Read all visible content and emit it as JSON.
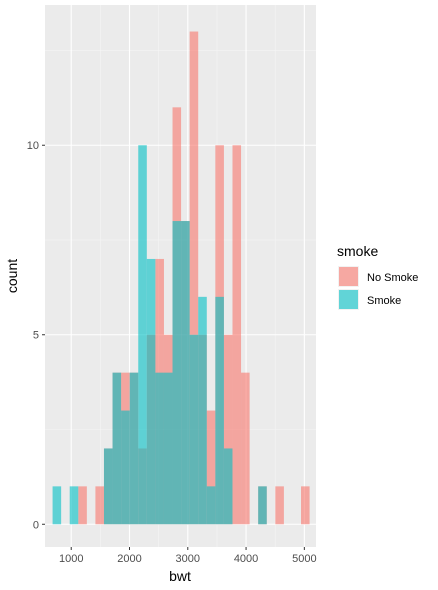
{
  "chart_data": {
    "type": "bar",
    "subtype": "overlapping histogram",
    "xlabel": "bwt",
    "ylabel": "count",
    "xlim": [
      550,
      5200
    ],
    "ylim": [
      -0.6,
      13.7
    ],
    "xticks": [
      1000,
      2000,
      3000,
      4000,
      5000
    ],
    "yticks": [
      0,
      5,
      10
    ],
    "grid": true,
    "background": "#ebebeb",
    "bin_width": 147,
    "bin_start": 680,
    "series_opacity": 0.6,
    "series": [
      {
        "name": "No Smoke",
        "color": "#F8766D",
        "values": [
          0,
          0,
          0,
          1,
          0,
          1,
          2,
          4,
          4,
          4,
          2,
          5,
          7,
          5,
          11,
          8,
          13,
          5,
          3,
          10,
          5,
          10,
          4,
          0,
          1,
          0,
          1,
          0,
          0,
          1
        ]
      },
      {
        "name": "Smoke",
        "color": "#00BFC4",
        "values": [
          1,
          0,
          1,
          0,
          0,
          0,
          2,
          4,
          3,
          4,
          10,
          7,
          4,
          4,
          8,
          8,
          5,
          6,
          1,
          6,
          2,
          0,
          0,
          0,
          1,
          0,
          0,
          0,
          0,
          0
        ]
      }
    ],
    "legend": {
      "title": "smoke",
      "position": "right",
      "items": [
        "No Smoke",
        "Smoke"
      ]
    }
  }
}
